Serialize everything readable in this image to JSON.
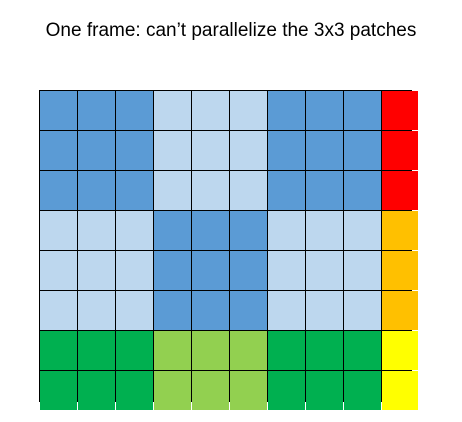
{
  "title": "One frame: can’t parallelize the 3x3 patches",
  "colors": {
    "blue": "#5b9bd5",
    "light_blue": "#bdd7ee",
    "green": "#00b050",
    "light_green": "#92d050",
    "red": "#ff0000",
    "orange": "#ffc000",
    "yellow": "#ffff00"
  },
  "grid": {
    "rows": [
      [
        "blue",
        "blue",
        "blue",
        "light_blue",
        "light_blue",
        "light_blue",
        "blue",
        "blue",
        "blue",
        "red"
      ],
      [
        "blue",
        "blue",
        "blue",
        "light_blue",
        "light_blue",
        "light_blue",
        "blue",
        "blue",
        "blue",
        "red"
      ],
      [
        "blue",
        "blue",
        "blue",
        "light_blue",
        "light_blue",
        "light_blue",
        "blue",
        "blue",
        "blue",
        "red"
      ],
      [
        "light_blue",
        "light_blue",
        "light_blue",
        "blue",
        "blue",
        "blue",
        "light_blue",
        "light_blue",
        "light_blue",
        "orange"
      ],
      [
        "light_blue",
        "light_blue",
        "light_blue",
        "blue",
        "blue",
        "blue",
        "light_blue",
        "light_blue",
        "light_blue",
        "orange"
      ],
      [
        "light_blue",
        "light_blue",
        "light_blue",
        "blue",
        "blue",
        "blue",
        "light_blue",
        "light_blue",
        "light_blue",
        "orange"
      ],
      [
        "green",
        "green",
        "green",
        "light_green",
        "light_green",
        "light_green",
        "green",
        "green",
        "green",
        "yellow"
      ],
      [
        "green",
        "green",
        "green",
        "light_green",
        "light_green",
        "light_green",
        "green",
        "green",
        "green",
        "yellow"
      ]
    ]
  }
}
